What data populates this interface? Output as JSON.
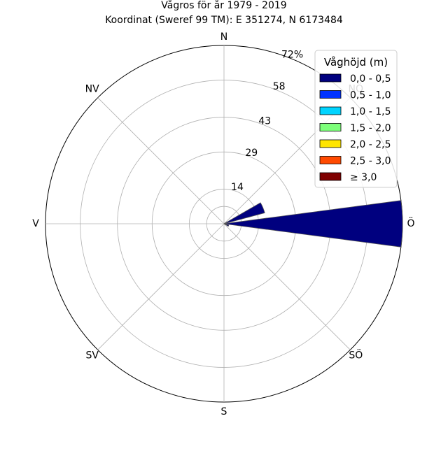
{
  "chart_data": {
    "type": "polar-bar",
    "title": "Vågros för år 1979 - 2019",
    "subtitle": "Koordinat (Sweref 99 TM): E 351274, N 6173484",
    "directions": [
      "N",
      "NÖ",
      "Ö",
      "SÖ",
      "S",
      "SV",
      "V",
      "NV"
    ],
    "direction_labels": [
      "N",
      "NÖ",
      "Ö",
      "SÖ",
      "S",
      "SV",
      "V",
      "NV"
    ],
    "ring_values": [
      14,
      29,
      43,
      58,
      72
    ],
    "ring_labels": [
      "14",
      "29",
      "43",
      "58",
      "72%"
    ],
    "rmax": 72,
    "grid": true,
    "legend": {
      "title": "Våghöjd (m)",
      "placement": "top-right",
      "entries": [
        {
          "label": "0,0 - 0,5",
          "color": "#00007f"
        },
        {
          "label": "0,5 - 1,0",
          "color": "#0033ff"
        },
        {
          "label": "1,0 - 1,5",
          "color": "#00d4ff"
        },
        {
          "label": "1,5 - 2,0",
          "color": "#7dff7a"
        },
        {
          "label": "2,0 - 2,5",
          "color": "#ffe500"
        },
        {
          "label": "2,5 - 3,0",
          "color": "#ff4a00"
        },
        {
          "label": "≥ 3,0",
          "color": "#7f0000"
        }
      ]
    },
    "sector_width_deg": 15,
    "series": [
      {
        "bin": "0,0 - 0,5",
        "color": "#00007f",
        "bars": [
          {
            "direction_deg": 67.5,
            "value": 17
          },
          {
            "direction_deg": 90,
            "value": 72
          },
          {
            "direction_deg": 112.5,
            "value": 2
          }
        ]
      }
    ]
  }
}
